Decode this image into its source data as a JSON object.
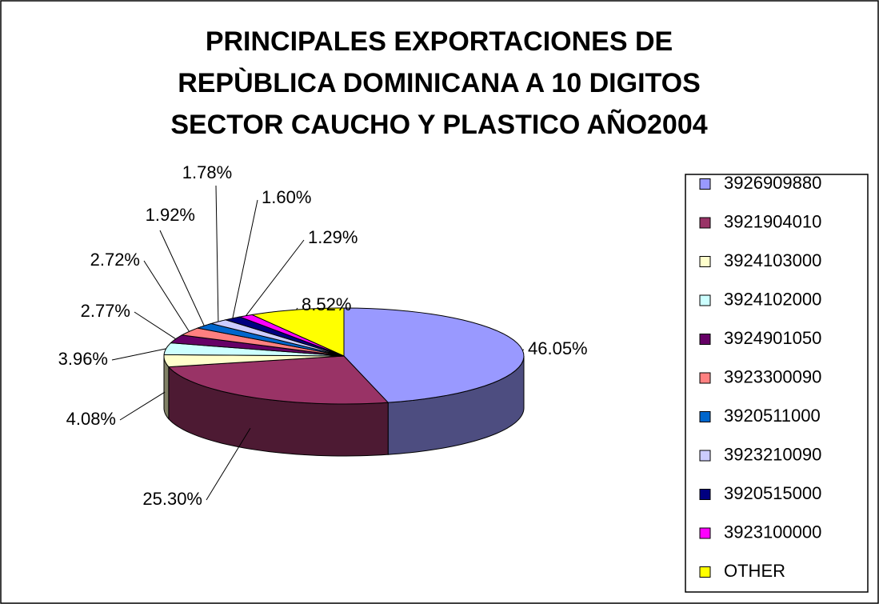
{
  "chart_data": {
    "type": "pie",
    "title": "PRINCIPALES EXPORTACIONES DE REPÙBLICA DOMINICANA A 10 DIGITOS SECTOR CAUCHO Y PLASTICO AÑO2004",
    "categories": [
      "3926909880",
      "3921904010",
      "3924103000",
      "3924102000",
      "3924901050",
      "3923300090",
      "3920511000",
      "3923210090",
      "3920515000",
      "3923100000",
      "OTHER"
    ],
    "values": [
      46.05,
      25.3,
      4.08,
      3.96,
      2.77,
      2.72,
      1.92,
      1.78,
      1.6,
      1.29,
      8.52
    ],
    "value_labels": [
      "46.05%",
      "25.30%",
      "4.08%",
      "3.96%",
      "2.77%",
      "2.72%",
      "1.92%",
      "1.78%",
      "1.60%",
      "1.29%",
      "8.52%"
    ],
    "colors": [
      "#9999ff",
      "#993366",
      "#ffffcc",
      "#ccffff",
      "#660066",
      "#ff8080",
      "#0066cc",
      "#ccccff",
      "#000080",
      "#ff00ff",
      "#ffff00"
    ],
    "legend": "right"
  }
}
